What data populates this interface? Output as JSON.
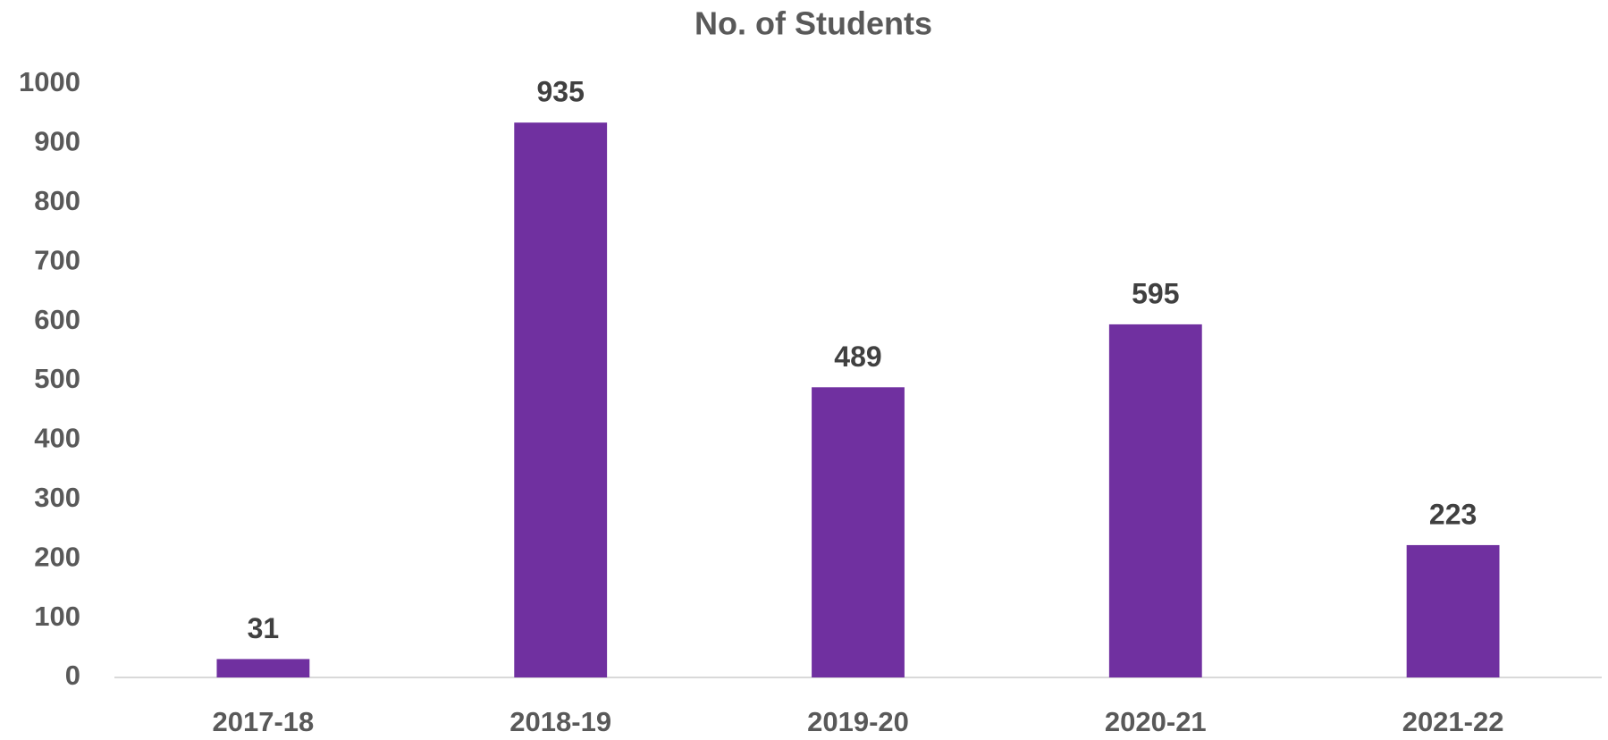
{
  "chart_data": {
    "type": "bar",
    "title": "No. of Students",
    "categories": [
      "2017-18",
      "2018-19",
      "2019-20",
      "2020-21",
      "2021-22"
    ],
    "values": [
      31,
      935,
      489,
      595,
      223
    ],
    "color": "#7030a0",
    "ylim": [
      0,
      1000
    ],
    "yticks": [
      0,
      100,
      200,
      300,
      400,
      500,
      600,
      700,
      800,
      900,
      1000
    ],
    "grid": false
  }
}
